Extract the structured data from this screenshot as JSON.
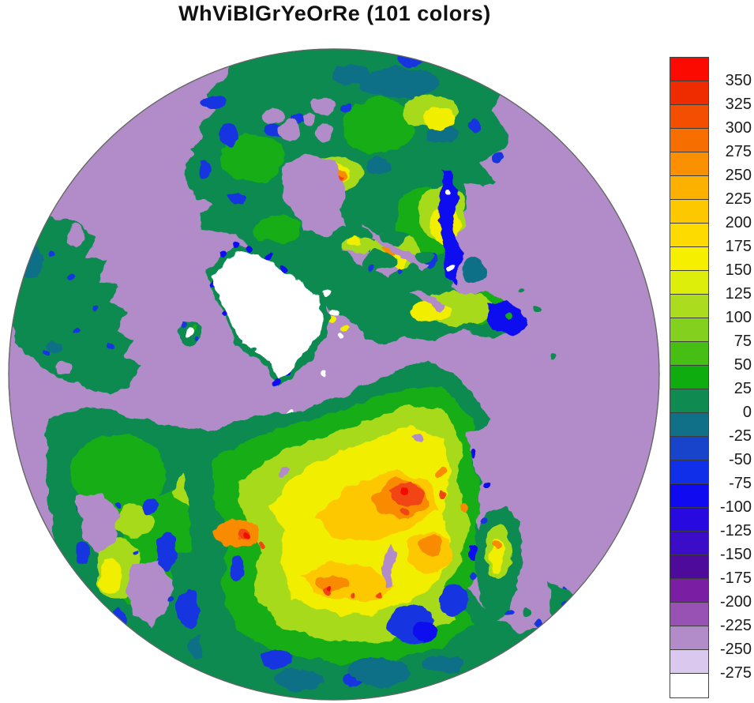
{
  "title": "WhViBlGrYeOrRe (101 colors)",
  "chart_data": {
    "type": "heatmap",
    "title": "WhViBlGrYeOrRe (101 colors)",
    "colormap_name": "WhViBlGrYeOrRe",
    "n_colors": 101,
    "projection": "north polar hemispheric disc",
    "legend_position": "right",
    "legend_tick_step": 25,
    "legend_tick_values": [
      350,
      325,
      300,
      275,
      250,
      225,
      200,
      175,
      150,
      125,
      100,
      75,
      50,
      25,
      0,
      -25,
      -50,
      -75,
      -100,
      -125,
      -150,
      -175,
      -200,
      -225,
      -250,
      -275
    ],
    "legend_box_colors_top_to_bottom": [
      "#FA0A00",
      "#EF2C00",
      "#F44E00",
      "#F76E00",
      "#FA9000",
      "#FCB000",
      "#FDC800",
      "#FDDA00",
      "#F6F000",
      "#DCEE0A",
      "#ACDC1E",
      "#84D01E",
      "#46BE14",
      "#0FAC0F",
      "#0F8A50",
      "#0F7087",
      "#1744CB",
      "#0F2FE8",
      "#0F0AF0",
      "#280AE1",
      "#3C0DC8",
      "#4E0A9B",
      "#7A1FA4",
      "#9852B4",
      "#B28CC8",
      "#DAC8EE",
      "#FFFFFF"
    ],
    "ocean_fill_hex": "#B28CC8",
    "ice_fill_hex": "#FFFFFF",
    "map_features_visible": [
      "light-purple ocean disc with thin gray rim",
      "white ice sheet (Greenland) left of center with blue/green coastal specks",
      "dark sea-green northern landmass across top with purple lakes and bay",
      "yellow-orange high ridge spots on top landmass",
      "large yellow/orange interior with red ridges in lower-right landmass (Siberia)",
      "blue low patches scattered along coasts",
      "small white-capped island (Iceland) left of Greenland",
      "Kamchatka-like peninsula and island arc at lower right",
      "purple inlets (Baltic-like) in lower-left green landmass",
      "narrow purple lake sliver (Baikal-like) in lower-right landmass"
    ]
  },
  "colorbar": {
    "tick_labels": [
      "350",
      "325",
      "300",
      "275",
      "250",
      "225",
      "200",
      "175",
      "150",
      "125",
      "100",
      "75",
      "50",
      "25",
      "0",
      "-25",
      "-50",
      "-75",
      "-100",
      "-125",
      "-150",
      "-175",
      "-200",
      "-225",
      "-250",
      "-275"
    ],
    "colors_top_to_bottom": [
      "#FA0A00",
      "#EF2C00",
      "#F44E00",
      "#F76E00",
      "#FA9000",
      "#FCB000",
      "#FDC800",
      "#FDDA00",
      "#F6F000",
      "#DCEE0A",
      "#ACDC1E",
      "#84D01E",
      "#46BE14",
      "#0FAC0F",
      "#0F8A50",
      "#0F7087",
      "#1744CB",
      "#0F2FE8",
      "#0F0AF0",
      "#280AE1",
      "#3C0DC8",
      "#4E0A9B",
      "#7A1FA4",
      "#9852B4",
      "#B28CC8",
      "#DAC8EE",
      "#FFFFFF"
    ]
  },
  "palette": {
    "ocean": "#B28CC8",
    "land_base": "#0E8A50",
    "teal": "#0F7087",
    "green": "#16AD16",
    "yellow_green": "#A8DA1E",
    "yellow": "#F2EE00",
    "amber": "#FDC800",
    "orange": "#F98B00",
    "red_orange": "#F24414",
    "red": "#F20D00",
    "blue": "#1436E0",
    "deep_blue": "#0F0AF0",
    "ice_white": "#FFFFFF",
    "rim": "#666666"
  }
}
